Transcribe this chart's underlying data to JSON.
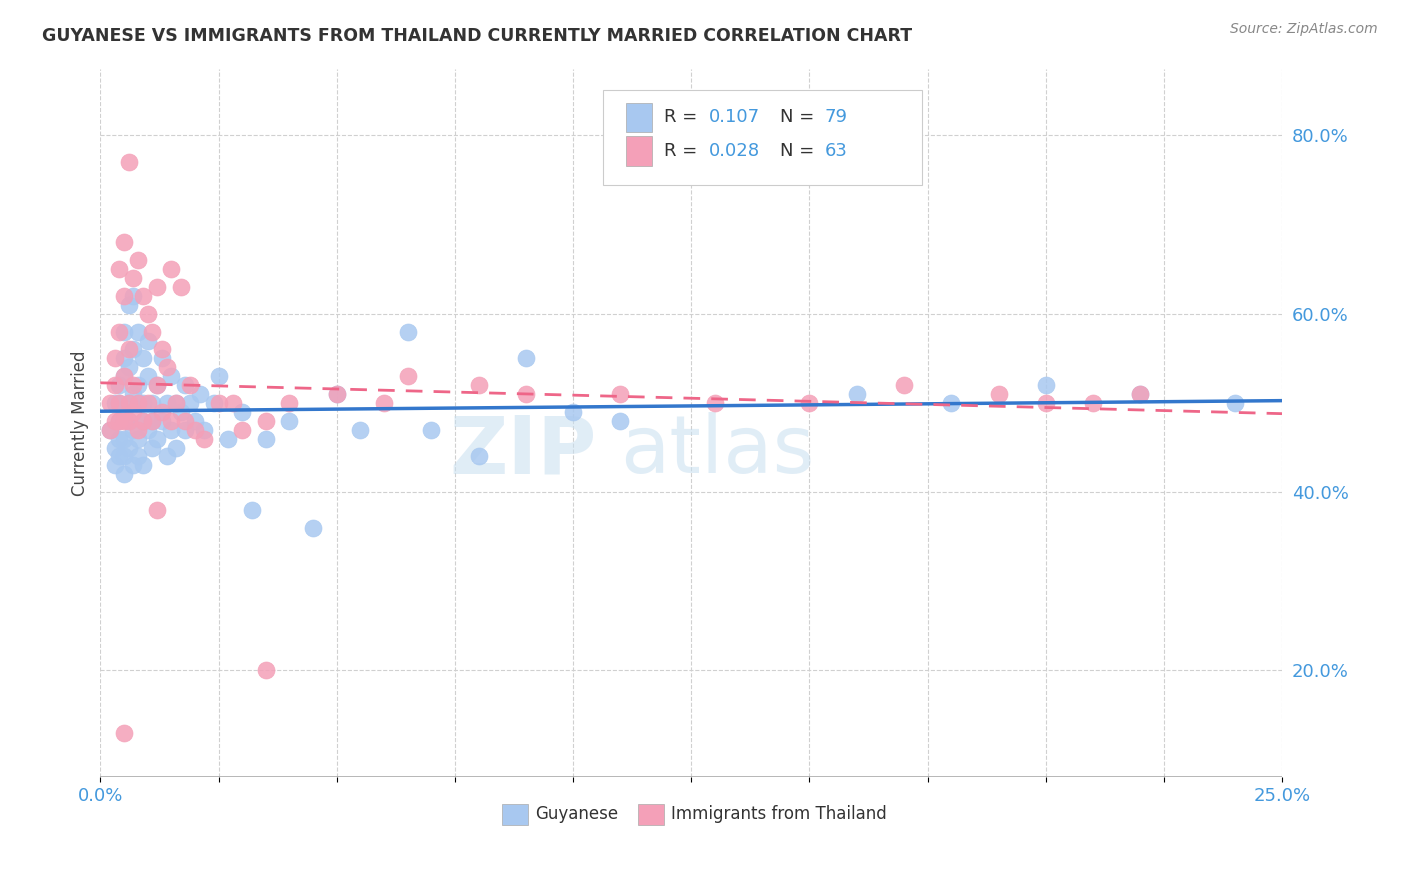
{
  "title": "GUYANESE VS IMMIGRANTS FROM THAILAND CURRENTLY MARRIED CORRELATION CHART",
  "source": "Source: ZipAtlas.com",
  "ylabel": "Currently Married",
  "ylabel_right_ticks": [
    "20.0%",
    "40.0%",
    "60.0%",
    "80.0%"
  ],
  "ylabel_right_vals": [
    0.2,
    0.4,
    0.6,
    0.8
  ],
  "xmin": 0.0,
  "xmax": 0.25,
  "ymin": 0.08,
  "ymax": 0.875,
  "color_blue": "#a8c8f0",
  "color_pink": "#f4a0b8",
  "color_blue_text": "#4499dd",
  "trendline_blue": "#3377cc",
  "trendline_pink": "#ee6688",
  "watermark_color": "#c8dff0",
  "guyanese_x": [
    0.002,
    0.003,
    0.003,
    0.003,
    0.004,
    0.004,
    0.004,
    0.004,
    0.004,
    0.005,
    0.005,
    0.005,
    0.005,
    0.005,
    0.005,
    0.005,
    0.006,
    0.006,
    0.006,
    0.006,
    0.006,
    0.007,
    0.007,
    0.007,
    0.007,
    0.007,
    0.008,
    0.008,
    0.008,
    0.008,
    0.008,
    0.009,
    0.009,
    0.009,
    0.009,
    0.01,
    0.01,
    0.01,
    0.011,
    0.011,
    0.011,
    0.012,
    0.012,
    0.013,
    0.013,
    0.014,
    0.014,
    0.015,
    0.015,
    0.016,
    0.016,
    0.017,
    0.018,
    0.018,
    0.019,
    0.02,
    0.021,
    0.022,
    0.024,
    0.025,
    0.027,
    0.03,
    0.032,
    0.035,
    0.04,
    0.045,
    0.05,
    0.055,
    0.065,
    0.07,
    0.08,
    0.09,
    0.1,
    0.11,
    0.16,
    0.18,
    0.2,
    0.22,
    0.24
  ],
  "guyanese_y": [
    0.47,
    0.5,
    0.45,
    0.43,
    0.52,
    0.48,
    0.44,
    0.46,
    0.5,
    0.55,
    0.49,
    0.46,
    0.53,
    0.42,
    0.58,
    0.44,
    0.61,
    0.48,
    0.5,
    0.45,
    0.54,
    0.62,
    0.47,
    0.51,
    0.43,
    0.56,
    0.58,
    0.5,
    0.46,
    0.52,
    0.44,
    0.55,
    0.48,
    0.43,
    0.5,
    0.57,
    0.47,
    0.53,
    0.5,
    0.45,
    0.48,
    0.52,
    0.46,
    0.55,
    0.48,
    0.5,
    0.44,
    0.53,
    0.47,
    0.5,
    0.45,
    0.49,
    0.52,
    0.47,
    0.5,
    0.48,
    0.51,
    0.47,
    0.5,
    0.53,
    0.46,
    0.49,
    0.38,
    0.46,
    0.48,
    0.36,
    0.51,
    0.47,
    0.58,
    0.47,
    0.44,
    0.55,
    0.49,
    0.48,
    0.51,
    0.5,
    0.52,
    0.51,
    0.5
  ],
  "thailand_x": [
    0.002,
    0.002,
    0.003,
    0.003,
    0.003,
    0.004,
    0.004,
    0.004,
    0.004,
    0.005,
    0.005,
    0.005,
    0.005,
    0.006,
    0.006,
    0.006,
    0.006,
    0.007,
    0.007,
    0.007,
    0.008,
    0.008,
    0.008,
    0.009,
    0.009,
    0.01,
    0.01,
    0.011,
    0.011,
    0.012,
    0.012,
    0.013,
    0.013,
    0.014,
    0.015,
    0.015,
    0.016,
    0.017,
    0.018,
    0.019,
    0.02,
    0.022,
    0.025,
    0.028,
    0.03,
    0.035,
    0.04,
    0.05,
    0.06,
    0.065,
    0.08,
    0.09,
    0.11,
    0.13,
    0.15,
    0.17,
    0.19,
    0.2,
    0.21,
    0.22,
    0.005,
    0.012,
    0.035
  ],
  "thailand_y": [
    0.5,
    0.47,
    0.55,
    0.48,
    0.52,
    0.65,
    0.58,
    0.48,
    0.5,
    0.68,
    0.62,
    0.48,
    0.53,
    0.77,
    0.56,
    0.48,
    0.5,
    0.64,
    0.52,
    0.49,
    0.66,
    0.5,
    0.47,
    0.62,
    0.48,
    0.6,
    0.5,
    0.58,
    0.48,
    0.63,
    0.52,
    0.56,
    0.49,
    0.54,
    0.65,
    0.48,
    0.5,
    0.63,
    0.48,
    0.52,
    0.47,
    0.46,
    0.5,
    0.5,
    0.47,
    0.48,
    0.5,
    0.51,
    0.5,
    0.53,
    0.52,
    0.51,
    0.51,
    0.5,
    0.5,
    0.52,
    0.51,
    0.5,
    0.5,
    0.51,
    0.13,
    0.38,
    0.2
  ]
}
